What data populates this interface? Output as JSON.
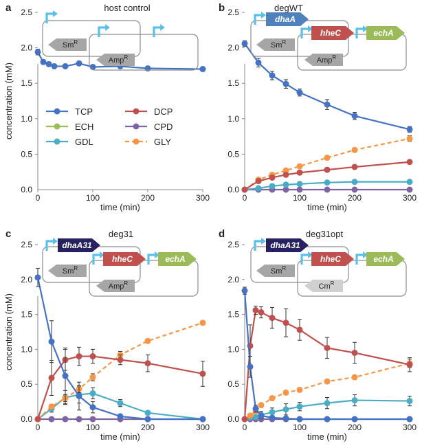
{
  "figure": {
    "y_axis_label": "concentration (mM)",
    "x_axis_label": "time (min)",
    "legend": [
      {
        "key": "TCP",
        "label": "TCP"
      },
      {
        "key": "DCP",
        "label": "DCP"
      },
      {
        "key": "ECH",
        "label": "ECH"
      },
      {
        "key": "CPD",
        "label": "CPD"
      },
      {
        "key": "GDL",
        "label": "GDL"
      },
      {
        "key": "GLY",
        "label": "GLY"
      }
    ],
    "colors": {
      "TCP": "#4472c4",
      "DCP": "#c0504d",
      "ECH": "#9bbb59",
      "CPD": "#8064a2",
      "GDL": "#4bacc6",
      "GLY": "#f79646",
      "arrow_cyan": "#5bc0e8",
      "dhaA": "#4f81bd",
      "dhaA31": "#262262",
      "hheC": "#c0504d",
      "echA": "#9bbb59",
      "marker_gray": "#a6a6a6",
      "cm_gray": "#d0d0d0",
      "plasmid_line": "#8c8c8c"
    },
    "plasmids": {
      "a": {
        "genes": [],
        "markers": [
          {
            "name": "Sm",
            "sup": "R"
          },
          {
            "name": "Amp",
            "sup": "R"
          }
        ]
      },
      "b": {
        "genes": [
          {
            "name": "dhaA",
            "color_key": "dhaA"
          },
          {
            "name": "hheC",
            "color_key": "hheC"
          },
          {
            "name": "echA",
            "color_key": "echA"
          }
        ],
        "markers": [
          {
            "name": "Sm",
            "sup": "R"
          },
          {
            "name": "Amp",
            "sup": "R"
          }
        ]
      },
      "c": {
        "genes": [
          {
            "name": "dhaA31",
            "color_key": "dhaA31"
          },
          {
            "name": "hheC",
            "color_key": "hheC"
          },
          {
            "name": "echA",
            "color_key": "echA"
          }
        ],
        "markers": [
          {
            "name": "Sm",
            "sup": "R"
          },
          {
            "name": "Amp",
            "sup": "R"
          }
        ]
      },
      "d": {
        "genes": [
          {
            "name": "dhaA31",
            "color_key": "dhaA31"
          },
          {
            "name": "hheC",
            "color_key": "hheC"
          },
          {
            "name": "echA",
            "color_key": "echA"
          }
        ],
        "markers": [
          {
            "name": "Sm",
            "sup": "R"
          },
          {
            "name": "Cm",
            "sup": "R"
          }
        ]
      }
    }
  },
  "chart_data": [
    {
      "type": "line",
      "panel": "a",
      "title": "host control",
      "xlabel": "time (min)",
      "ylabel": "concentration (mM)",
      "xlim": [
        0,
        300
      ],
      "ylim": [
        0,
        2.5
      ],
      "xticks": [
        0,
        100,
        200,
        300
      ],
      "yticks": [
        0.0,
        0.5,
        1.0,
        1.5,
        2.0,
        2.5
      ],
      "series": [
        {
          "name": "TCP",
          "x": [
            0,
            10,
            20,
            30,
            50,
            75,
            100,
            150,
            200,
            300
          ],
          "values": [
            1.94,
            1.8,
            1.77,
            1.74,
            1.74,
            1.78,
            1.73,
            1.74,
            1.71,
            1.7
          ],
          "err": [
            0.04,
            0.03,
            0.03,
            0.03,
            0.03,
            0.03,
            0.03,
            0.03,
            0.03,
            0.03
          ],
          "dashed": false
        }
      ]
    },
    {
      "type": "line",
      "panel": "b",
      "title": "degWT",
      "xlabel": "time (min)",
      "ylabel": "",
      "xlim": [
        0,
        300
      ],
      "ylim": [
        0,
        2.5
      ],
      "xticks": [
        0,
        100,
        200,
        300
      ],
      "yticks": [
        0.0,
        0.5,
        1.0,
        1.5,
        2.0,
        2.5
      ],
      "series": [
        {
          "name": "TCP",
          "x": [
            0,
            25,
            50,
            75,
            100,
            150,
            200,
            300
          ],
          "values": [
            2.06,
            1.79,
            1.61,
            1.49,
            1.37,
            1.2,
            1.04,
            0.85
          ],
          "err": [
            0.04,
            0.06,
            0.06,
            0.06,
            0.05,
            0.07,
            0.05,
            0.04
          ],
          "dashed": false
        },
        {
          "name": "DCP",
          "x": [
            0,
            25,
            50,
            75,
            100,
            150,
            200,
            300
          ],
          "values": [
            0.0,
            0.12,
            0.17,
            0.21,
            0.24,
            0.28,
            0.32,
            0.39
          ],
          "err": [
            0,
            0,
            0,
            0,
            0,
            0,
            0,
            0
          ],
          "dashed": false
        },
        {
          "name": "GDL",
          "x": [
            0,
            25,
            50,
            75,
            100,
            150,
            200,
            300
          ],
          "values": [
            0.0,
            0.02,
            0.05,
            0.07,
            0.08,
            0.1,
            0.11,
            0.11
          ],
          "err": [
            0,
            0,
            0,
            0,
            0,
            0,
            0,
            0
          ],
          "dashed": false
        },
        {
          "name": "CPD",
          "x": [
            0,
            25,
            50,
            75,
            100,
            150,
            200,
            300
          ],
          "values": [
            0.0,
            0.0,
            0.0,
            0.0,
            0.0,
            0.0,
            0.0,
            0.0
          ],
          "err": [
            0,
            0,
            0,
            0,
            0,
            0,
            0,
            0
          ],
          "dashed": false
        },
        {
          "name": "GLY",
          "x": [
            0,
            25,
            50,
            75,
            100,
            150,
            200,
            300
          ],
          "values": [
            0.0,
            0.14,
            0.21,
            0.27,
            0.33,
            0.45,
            0.56,
            0.72
          ],
          "err": [
            0,
            0,
            0,
            0,
            0,
            0.03,
            0.03,
            0.04
          ],
          "dashed": true
        }
      ]
    },
    {
      "type": "line",
      "panel": "c",
      "title": "deg31",
      "xlabel": "time (min)",
      "ylabel": "concentration (mM)",
      "xlim": [
        0,
        300
      ],
      "ylim": [
        0,
        2.5
      ],
      "xticks": [
        0,
        100,
        200,
        300
      ],
      "yticks": [
        0.0,
        0.5,
        1.0,
        1.5,
        2.0,
        2.5
      ],
      "series": [
        {
          "name": "TCP",
          "x": [
            0,
            25,
            50,
            75,
            100,
            150,
            200,
            300
          ],
          "values": [
            2.03,
            1.11,
            0.62,
            0.33,
            0.17,
            0.04,
            0.0,
            0.0
          ],
          "err": [
            0.13,
            0.3,
            0.4,
            0.2,
            0.08,
            0.03,
            0,
            0
          ],
          "dashed": false
        },
        {
          "name": "DCP",
          "x": [
            0,
            25,
            50,
            75,
            100,
            150,
            200,
            300
          ],
          "values": [
            0.0,
            0.59,
            0.85,
            0.9,
            0.9,
            0.85,
            0.8,
            0.65
          ],
          "err": [
            0,
            0.25,
            0.15,
            0.13,
            0.1,
            0.07,
            0.12,
            0.18
          ],
          "dashed": false
        },
        {
          "name": "GDL",
          "x": [
            0,
            25,
            50,
            75,
            100,
            150,
            200,
            300
          ],
          "values": [
            0.0,
            0.15,
            0.31,
            0.35,
            0.37,
            0.23,
            0.09,
            0.0
          ],
          "err": [
            0,
            0.05,
            0.1,
            0.12,
            0.08,
            0.05,
            0.03,
            0
          ],
          "dashed": false
        },
        {
          "name": "CPD",
          "x": [
            0,
            25,
            50,
            75,
            100,
            150,
            200,
            300
          ],
          "values": [
            0.0,
            0.0,
            0.0,
            0.0,
            0.0,
            0.0,
            0.0,
            0.0
          ],
          "err": [
            0,
            0,
            0,
            0,
            0,
            0,
            0,
            0
          ],
          "dashed": false
        },
        {
          "name": "GLY",
          "x": [
            0,
            25,
            50,
            75,
            100,
            150,
            200,
            300
          ],
          "values": [
            0.0,
            0.18,
            0.3,
            0.43,
            0.6,
            0.92,
            1.12,
            1.38
          ],
          "err": [
            0,
            0.03,
            0.05,
            0.05,
            0.05,
            0.05,
            0.03,
            0.03
          ],
          "dashed": true
        }
      ]
    },
    {
      "type": "line",
      "panel": "d",
      "title": "deg31opt",
      "xlabel": "time (min)",
      "ylabel": "",
      "xlim": [
        0,
        300
      ],
      "ylim": [
        0,
        2.5
      ],
      "xticks": [
        0,
        100,
        200,
        300
      ],
      "yticks": [
        0.0,
        0.5,
        1.0,
        1.5,
        2.0,
        2.5
      ],
      "series": [
        {
          "name": "TCP",
          "x": [
            0,
            10,
            20,
            30,
            50,
            75,
            100,
            150,
            200,
            300
          ],
          "values": [
            1.84,
            0.75,
            0.15,
            0.05,
            0.02,
            0.01,
            0.0,
            0.0,
            0.0,
            0.0
          ],
          "err": [
            0.05,
            0.15,
            0.05,
            0.02,
            0,
            0,
            0,
            0,
            0,
            0
          ],
          "dashed": false
        },
        {
          "name": "DCP",
          "x": [
            0,
            10,
            20,
            30,
            50,
            75,
            100,
            150,
            200,
            300
          ],
          "values": [
            0.0,
            1.05,
            1.56,
            1.53,
            1.45,
            1.38,
            1.28,
            1.02,
            0.95,
            0.78
          ],
          "err": [
            0,
            0.3,
            0.06,
            0.08,
            0.15,
            0.2,
            0.15,
            0.15,
            0.15,
            0.1
          ],
          "dashed": false
        },
        {
          "name": "GDL",
          "x": [
            0,
            10,
            20,
            30,
            50,
            75,
            100,
            150,
            200,
            300
          ],
          "values": [
            0.0,
            0.02,
            0.03,
            0.06,
            0.1,
            0.14,
            0.18,
            0.23,
            0.27,
            0.26
          ],
          "err": [
            0,
            0,
            0,
            0.05,
            0.06,
            0.08,
            0.06,
            0.08,
            0.08,
            0.07
          ],
          "dashed": false
        },
        {
          "name": "CPD",
          "x": [
            0,
            10,
            20,
            30,
            50,
            75,
            100,
            150,
            200,
            300
          ],
          "values": [
            0.0,
            0.0,
            0.0,
            0.0,
            0.0,
            0.0,
            0.0,
            0.0,
            0.0,
            0.0
          ],
          "err": [
            0,
            0,
            0,
            0,
            0,
            0,
            0,
            0,
            0,
            0
          ],
          "dashed": false
        },
        {
          "name": "GLY",
          "x": [
            0,
            10,
            20,
            30,
            50,
            75,
            100,
            150,
            200,
            300
          ],
          "values": [
            0.0,
            0.05,
            0.11,
            0.2,
            0.3,
            0.38,
            0.42,
            0.54,
            0.6,
            0.8
          ],
          "err": [
            0,
            0,
            0,
            0,
            0.03,
            0.03,
            0.03,
            0.03,
            0.03,
            0.06
          ],
          "dashed": true
        }
      ]
    }
  ]
}
